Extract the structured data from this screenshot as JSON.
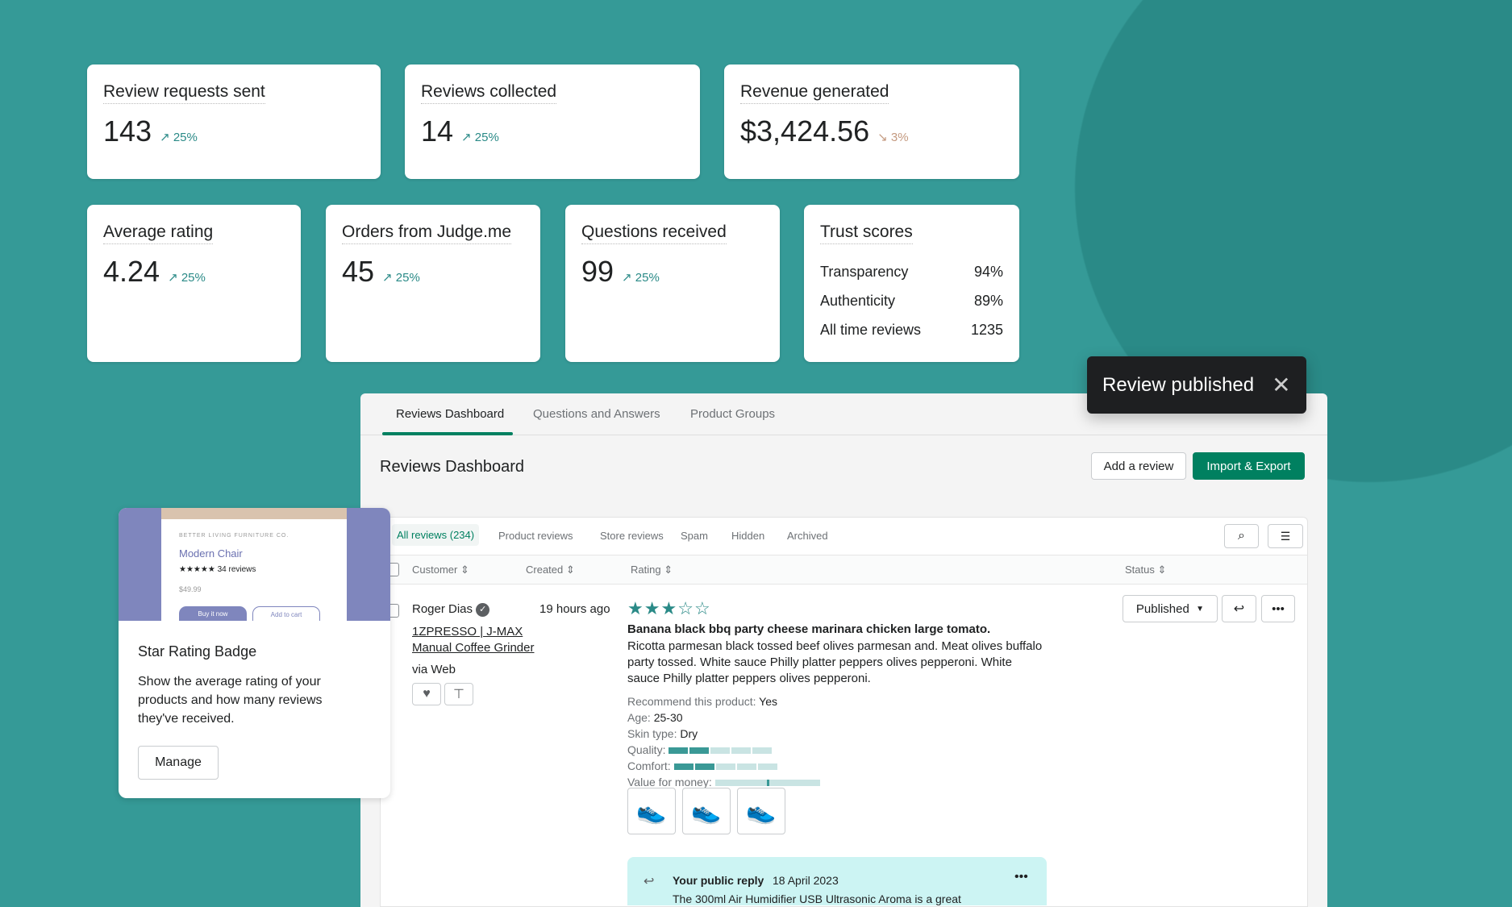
{
  "stats": [
    {
      "title": "Review requests sent",
      "value": "143",
      "delta": "25%",
      "trend": "up"
    },
    {
      "title": "Reviews collected",
      "value": "14",
      "delta": "25%",
      "trend": "up"
    },
    {
      "title": "Revenue generated",
      "value": "$3,424.56",
      "delta": "3%",
      "trend": "down"
    },
    {
      "title": "Average rating",
      "value": "4.24",
      "delta": "25%",
      "trend": "up"
    },
    {
      "title": "Orders from Judge.me",
      "value": "45",
      "delta": "25%",
      "trend": "up"
    },
    {
      "title": "Questions received",
      "value": "99",
      "delta": "25%",
      "trend": "up"
    }
  ],
  "trust": {
    "title": "Trust scores",
    "rows": [
      {
        "label": "Transparency",
        "value": "94%"
      },
      {
        "label": "Authenticity",
        "value": "89%"
      },
      {
        "label": "All time reviews",
        "value": "1235"
      }
    ]
  },
  "toast": {
    "message": "Review published",
    "close": "✕"
  },
  "tabs": [
    "Reviews Dashboard",
    "Questions and Answers",
    "Product Groups"
  ],
  "page": {
    "title": "Reviews Dashboard",
    "add_review": "Add a review",
    "import_export": "Import & Export"
  },
  "filters": [
    "All reviews (234)",
    "Product reviews",
    "Store reviews",
    "Spam",
    "Hidden",
    "Archived"
  ],
  "columns": [
    "Customer",
    "Created",
    "Rating",
    "Status"
  ],
  "review": {
    "customer": "Roger Dias",
    "product_line1": "1ZPRESSO | J-MAX",
    "product_line2": "Manual Coffee Grinder",
    "source": "via Web",
    "created": "19 hours ago",
    "rating": 3,
    "max_rating": 5,
    "title": "Banana black bbq party cheese marinara chicken large tomato.",
    "body": "Ricotta parmesan black tossed beef olives parmesan and. Meat olives buffalo party tossed. White sauce Philly platter peppers olives pepperoni. White sauce Philly platter peppers olives pepperoni.",
    "recommend_label": "Recommend this product:",
    "recommend": "Yes",
    "age_label": "Age:",
    "age": "25-30",
    "skin_label": "Skin type:",
    "skin": "Dry",
    "quality_label": "Quality:",
    "quality": 2,
    "comfort_label": "Comfort:",
    "comfort": 2,
    "value_label": "Value for money:",
    "value_money": 0.5,
    "status": "Published",
    "reply": {
      "label": "Your public reply",
      "date": "18 April 2023",
      "text": "The 300ml Air Humidifier USB Ultrasonic Aroma is a great"
    }
  },
  "badge": {
    "brand": "BETTER LIVING FURNITURE CO.",
    "product": "Modern Chair",
    "reviews": "34 reviews",
    "price": "$49.99",
    "buy": "Buy it now",
    "cart": "Add to cart",
    "title": "Star Rating Badge",
    "desc": "Show the average rating of your products and how many reviews they've received.",
    "manage": "Manage"
  },
  "colors": {
    "background": "#359a97",
    "accent": "#008060",
    "positive": "#2a8a87",
    "negative": "#c49a80"
  }
}
